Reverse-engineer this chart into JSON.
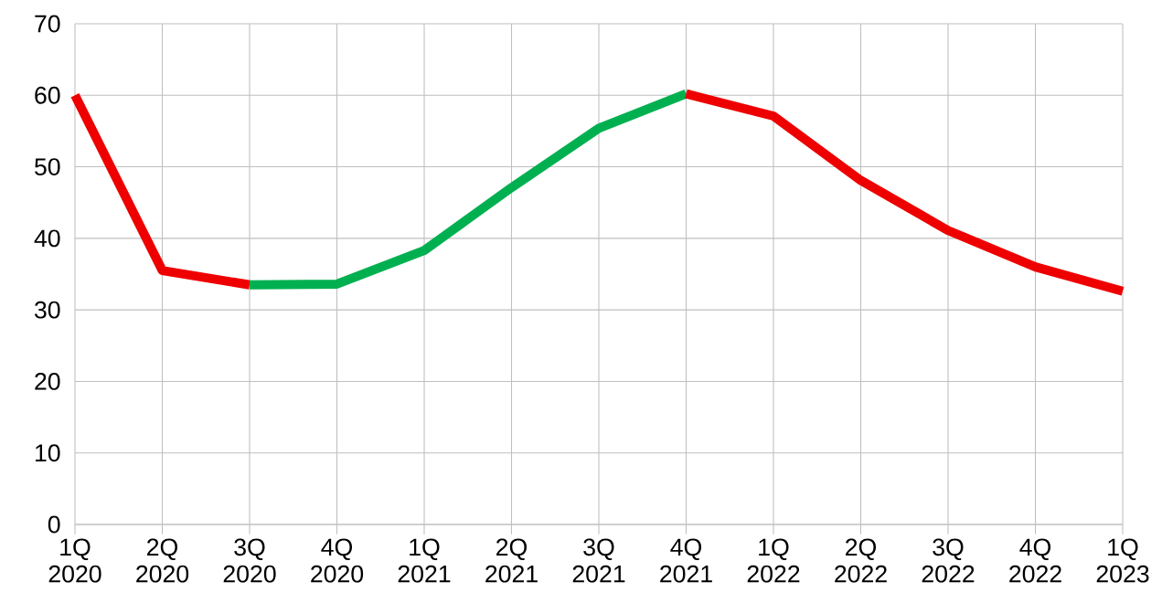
{
  "chart_data": {
    "type": "line",
    "categories": [
      "1Q 2020",
      "2Q 2020",
      "3Q 2020",
      "4Q 2020",
      "1Q 2021",
      "2Q 2021",
      "3Q 2021",
      "4Q 2021",
      "1Q 2022",
      "2Q 2022",
      "3Q 2022",
      "4Q 2022",
      "1Q 2023"
    ],
    "series": [
      {
        "color": "#ee0000",
        "values": [
          60.0,
          35.5,
          33.5,
          null,
          null,
          null,
          null,
          null,
          null,
          null,
          null,
          null,
          null
        ]
      },
      {
        "color": "#00b050",
        "values": [
          null,
          null,
          33.5,
          33.6,
          38.3,
          47.1,
          55.4,
          60.2,
          null,
          null,
          null,
          null,
          null
        ]
      },
      {
        "color": "#ee0000",
        "values": [
          null,
          null,
          null,
          null,
          null,
          null,
          null,
          60.2,
          57.1,
          48.1,
          41.1,
          36.0,
          32.6
        ]
      }
    ],
    "ylim": [
      0,
      70
    ],
    "yticks": [
      0,
      10,
      20,
      30,
      40,
      50,
      60,
      70
    ],
    "grid": true,
    "line_style": "solid",
    "marker": "none"
  }
}
